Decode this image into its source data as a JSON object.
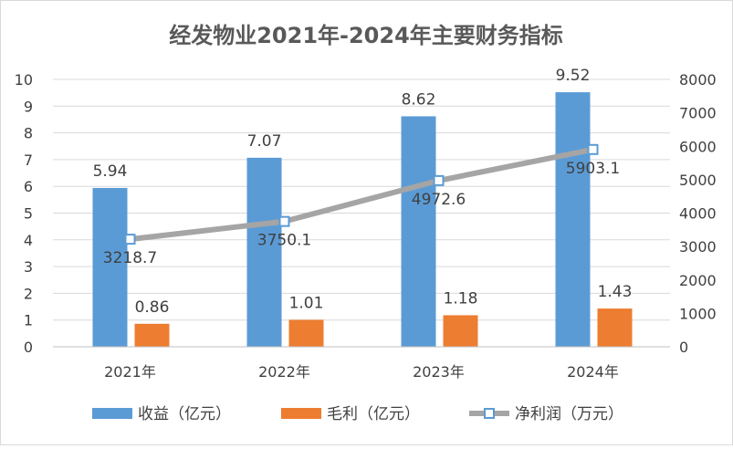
{
  "chart_data": {
    "type": "bar",
    "title": "经发物业2021年-2024年主要财务指标",
    "categories": [
      "2021年",
      "2022年",
      "2023年",
      "2024年"
    ],
    "series": [
      {
        "name": "收益（亿元）",
        "type": "bar",
        "axis": "left",
        "color": "#5b9bd5",
        "values": [
          5.94,
          7.07,
          8.62,
          9.52
        ]
      },
      {
        "name": "毛利（亿元）",
        "type": "bar",
        "axis": "left",
        "color": "#ed7d31",
        "values": [
          0.86,
          1.01,
          1.18,
          1.43
        ]
      },
      {
        "name": "净利润（万元）",
        "type": "line",
        "axis": "right",
        "color": "#a5a5a5",
        "marker_color": "#5b9bd5",
        "values": [
          3218.7,
          3750.1,
          4972.6,
          5903.1
        ]
      }
    ],
    "data_labels": {
      "revenue": [
        "5.94",
        "7.07",
        "8.62",
        "9.52"
      ],
      "gross_profit": [
        "0.86",
        "1.01",
        "1.18",
        "1.43"
      ],
      "net_profit": [
        "3218.7",
        "3750.1",
        "4972.6",
        "5903.1"
      ]
    },
    "y_left": {
      "min": 0,
      "max": 10,
      "step": 1,
      "ticks": [
        "0",
        "1",
        "2",
        "3",
        "4",
        "5",
        "6",
        "7",
        "8",
        "9",
        "10"
      ]
    },
    "y_right": {
      "min": 0,
      "max": 8000,
      "step": 1000,
      "ticks": [
        "0",
        "1000",
        "2000",
        "3000",
        "4000",
        "5000",
        "6000",
        "7000",
        "8000"
      ]
    },
    "grid": true,
    "legend_position": "bottom"
  }
}
